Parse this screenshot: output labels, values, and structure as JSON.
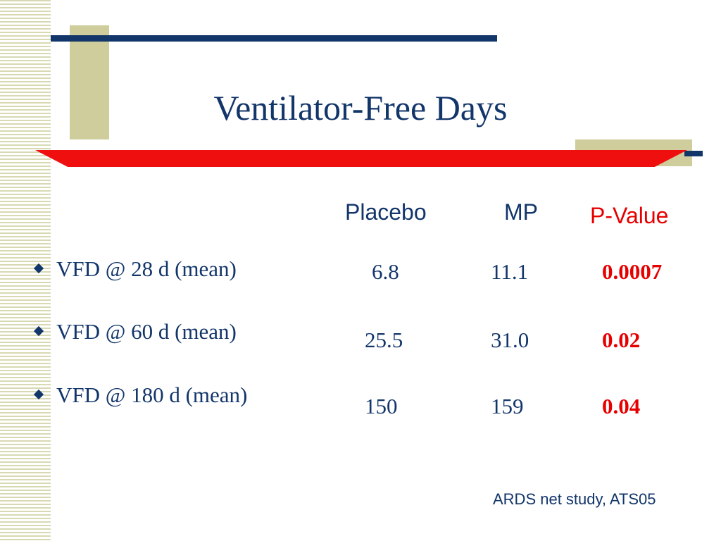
{
  "title": "Ventilator-Free Days",
  "headers": {
    "placebo": "Placebo",
    "mp": "MP",
    "pvalue": "P-Value"
  },
  "rows": [
    {
      "label": "VFD @ 28 d (mean)",
      "placebo": "6.8",
      "mp": "11.1",
      "pvalue": "0.0007"
    },
    {
      "label": "VFD @ 60 d (mean)",
      "placebo": "25.5",
      "mp": "31.0",
      "pvalue": "0.02"
    },
    {
      "label": "VFD @ 180 d (mean)",
      "placebo": "150",
      "mp": "159",
      "pvalue": "0.04"
    }
  ],
  "footnote": "ARDS net study, ATS05",
  "colors": {
    "navy": "#12356a",
    "red": "#e60000",
    "tan": "#cfcd9b"
  }
}
